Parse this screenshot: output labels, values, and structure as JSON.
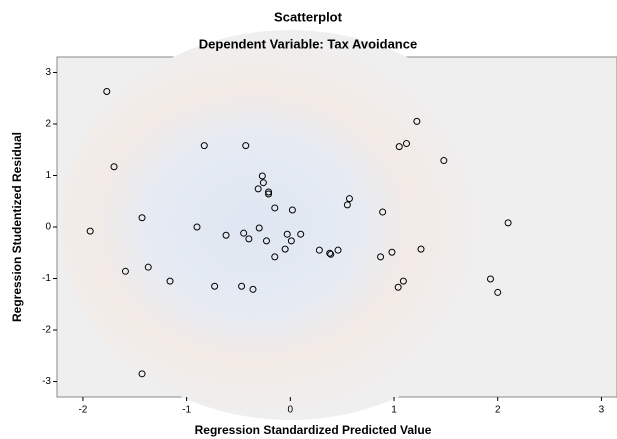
{
  "chart_data": {
    "type": "scatter",
    "title": "Scatterplot",
    "subtitle": "Dependent Variable: Tax Avoidance",
    "x_label": "Regression Standardized Predicted Value",
    "y_label": "Regression Studentized Residual",
    "x": [
      -1.77,
      -1.7,
      -1.93,
      -1.43,
      -1.59,
      -1.37,
      -1.43,
      -1.16,
      -0.83,
      -0.9,
      -0.73,
      -0.62,
      -0.43,
      -0.45,
      -0.4,
      -0.47,
      -0.36,
      -0.27,
      -0.26,
      -0.31,
      -0.21,
      -0.21,
      -0.3,
      -0.23,
      -0.15,
      -0.15,
      -0.05,
      -0.03,
      0.01,
      0.02,
      0.1,
      0.28,
      0.38,
      0.39,
      0.46,
      0.55,
      0.57,
      0.87,
      0.89,
      0.98,
      1.05,
      1.12,
      1.04,
      1.09,
      1.22,
      1.26,
      1.48,
      1.93,
      2.0,
      2.1
    ],
    "values": [
      2.63,
      1.17,
      -0.08,
      0.18,
      -0.86,
      -0.78,
      -2.85,
      -1.05,
      1.58,
      0.0,
      -1.15,
      -0.16,
      1.58,
      -0.12,
      -0.23,
      -1.15,
      -1.21,
      0.99,
      0.86,
      0.74,
      0.68,
      0.64,
      -0.02,
      -0.27,
      0.37,
      -0.58,
      -0.43,
      -0.14,
      -0.27,
      0.33,
      -0.14,
      -0.45,
      -0.51,
      -0.53,
      -0.45,
      0.43,
      0.55,
      -0.58,
      0.29,
      -0.49,
      1.56,
      1.62,
      -1.17,
      -1.05,
      2.05,
      -0.43,
      1.29,
      -1.01,
      -1.27,
      0.08
    ],
    "color": "#000000",
    "xlim": [
      -2.25,
      3.15
    ],
    "xticks": [
      -2,
      -1,
      0,
      1,
      2,
      3
    ],
    "ylim": [
      -3.3,
      3.3
    ],
    "yticks": [
      -3,
      -2,
      -1,
      0,
      1,
      2,
      3
    ]
  }
}
